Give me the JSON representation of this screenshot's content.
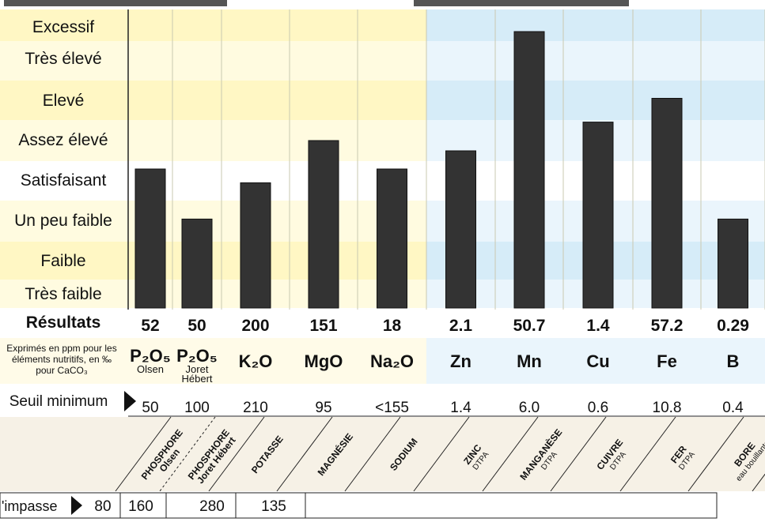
{
  "colors": {
    "warm_band_a": "#fff7c4",
    "warm_band_b": "#fffbe0",
    "cool_band_a": "#d6ecf8",
    "cool_band_b": "#eaf5fc",
    "white_band": "#ffffff",
    "bar": "#333333",
    "header_bar": "#555555"
  },
  "levels": [
    "Excessif",
    "Très élevé",
    "Elevé",
    "Assez élevé",
    "Satisfaisant",
    "Un peu faible",
    "Faible",
    "Très faible"
  ],
  "results_label": "Résultats",
  "note_lines": [
    "Exprimés en ppm pour les",
    "éléments nutritifs, en ‰",
    "pour CaCO₃"
  ],
  "seuil_label": "Seuil minimum",
  "impasse_label": "'impasse",
  "columns": [
    {
      "element": "P₂O₅",
      "sub": [
        "Olsen"
      ],
      "nutrient": "PHOSPHORE",
      "method": "Olsen",
      "result": "52",
      "seuil": "50",
      "impasse": "80"
    },
    {
      "element": "P₂O₅",
      "sub": [
        "Joret",
        "Hébert"
      ],
      "nutrient": "PHOSPHORE",
      "method": "Joret Hébert",
      "result": "50",
      "seuil": "100",
      "impasse": "160"
    },
    {
      "element": "K₂O",
      "sub": [],
      "nutrient": "POTASSE",
      "method": "",
      "result": "200",
      "seuil": "210",
      "impasse": "280"
    },
    {
      "element": "MgO",
      "sub": [],
      "nutrient": "MAGNÉSIE",
      "method": "",
      "result": "151",
      "seuil": "95",
      "impasse": "135"
    },
    {
      "element": "Na₂O",
      "sub": [],
      "nutrient": "SODIUM",
      "method": "",
      "result": "18",
      "seuil": "<155",
      "impasse": ""
    },
    {
      "element": "Zn",
      "sub": [],
      "nutrient": "ZINC",
      "method": "DTPA",
      "result": "2.1",
      "seuil": "1.4",
      "impasse": ""
    },
    {
      "element": "Mn",
      "sub": [],
      "nutrient": "MANGANÈSE",
      "method": "DTPA",
      "result": "50.7",
      "seuil": "6.0",
      "impasse": ""
    },
    {
      "element": "Cu",
      "sub": [],
      "nutrient": "CUIVRE",
      "method": "DTPA",
      "result": "1.4",
      "seuil": "0.6",
      "impasse": ""
    },
    {
      "element": "Fe",
      "sub": [],
      "nutrient": "FER",
      "method": "DTPA",
      "result": "57.2",
      "seuil": "10.8",
      "impasse": ""
    },
    {
      "element": "B",
      "sub": [],
      "nutrient": "BORE",
      "method": "eau bouillante",
      "result": "0.29",
      "seuil": "0.4",
      "impasse": ""
    }
  ],
  "chart_data": {
    "type": "bar",
    "categories": [
      "P₂O₅ Olsen",
      "P₂O₅ Joret Hébert",
      "K₂O",
      "MgO",
      "Na₂O",
      "Zn",
      "Mn",
      "Cu",
      "Fe",
      "B"
    ],
    "y_categories": [
      "Très faible",
      "Faible",
      "Un peu faible",
      "Satisfaisant",
      "Assez élevé",
      "Elevé",
      "Très élevé",
      "Excessif"
    ],
    "level_index": [
      3.8,
      2.55,
      3.45,
      4.5,
      3.8,
      4.25,
      7.3,
      4.95,
      5.55,
      2.55
    ],
    "ylim": [
      0,
      8
    ],
    "grid": false,
    "legend": "none"
  }
}
